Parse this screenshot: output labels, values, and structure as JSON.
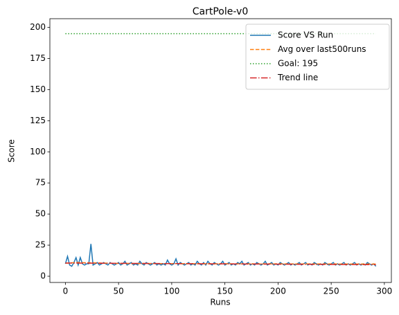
{
  "chart_data": {
    "type": "line",
    "title": "CartPole-v0",
    "x_label": "Runs",
    "y_label": "Score",
    "xlim": [
      -14.6,
      306.6
    ],
    "ylim": [
      -5,
      207
    ],
    "xticks": [
      0,
      50,
      100,
      150,
      200,
      250,
      300
    ],
    "yticks": [
      0,
      25,
      50,
      75,
      100,
      125,
      150,
      175,
      200
    ],
    "legend": "upper right",
    "series": [
      {
        "name": "Score VS Run",
        "color": "#1f77b4",
        "style": "solid",
        "x": [
          0,
          2,
          4,
          6,
          8,
          10,
          12,
          14,
          16,
          18,
          20,
          22,
          24,
          26,
          28,
          30,
          32,
          34,
          36,
          38,
          40,
          42,
          44,
          46,
          48,
          50,
          52,
          54,
          56,
          58,
          60,
          62,
          64,
          66,
          68,
          70,
          72,
          74,
          76,
          78,
          80,
          82,
          84,
          86,
          88,
          90,
          92,
          94,
          96,
          98,
          100,
          102,
          104,
          106,
          108,
          110,
          112,
          114,
          116,
          118,
          120,
          122,
          124,
          126,
          128,
          130,
          132,
          134,
          136,
          138,
          140,
          142,
          144,
          146,
          148,
          150,
          152,
          154,
          156,
          158,
          160,
          162,
          164,
          166,
          168,
          170,
          172,
          174,
          176,
          178,
          180,
          182,
          184,
          186,
          188,
          190,
          192,
          194,
          196,
          198,
          200,
          202,
          204,
          206,
          208,
          210,
          212,
          214,
          216,
          218,
          220,
          222,
          224,
          226,
          228,
          230,
          232,
          234,
          236,
          238,
          240,
          242,
          244,
          246,
          248,
          250,
          252,
          254,
          256,
          258,
          260,
          262,
          264,
          266,
          268,
          270,
          272,
          274,
          276,
          278,
          280,
          282,
          284,
          286,
          288,
          290,
          292
        ],
        "values": [
          10,
          16,
          9,
          8,
          11,
          15,
          9,
          15,
          10,
          9,
          10,
          10,
          26,
          9,
          10,
          11,
          9,
          10,
          11,
          10,
          9,
          11,
          10,
          9,
          10,
          11,
          9,
          10,
          12,
          9,
          10,
          11,
          9,
          10,
          9,
          12,
          10,
          9,
          11,
          10,
          9,
          10,
          11,
          9,
          10,
          9,
          10,
          9,
          13,
          10,
          9,
          10,
          14,
          9,
          11,
          10,
          9,
          10,
          11,
          9,
          10,
          9,
          12,
          10,
          9,
          11,
          9,
          12,
          10,
          9,
          11,
          10,
          9,
          10,
          12,
          9,
          10,
          11,
          9,
          10,
          9,
          11,
          10,
          12,
          9,
          10,
          11,
          9,
          10,
          9,
          11,
          10,
          9,
          10,
          12,
          9,
          10,
          11,
          9,
          10,
          9,
          11,
          10,
          9,
          10,
          11,
          9,
          10,
          9,
          10,
          11,
          9,
          10,
          11,
          9,
          10,
          9,
          11,
          10,
          9,
          10,
          9,
          11,
          10,
          9,
          10,
          11,
          9,
          10,
          9,
          10,
          11,
          9,
          10,
          9,
          10,
          11,
          9,
          10,
          9,
          10,
          9,
          11,
          10,
          9,
          10,
          8
        ]
      },
      {
        "name": "Avg over last500runs",
        "color": "#ff7f0e",
        "style": "dashed",
        "x": [
          0,
          10,
          25,
          50,
          150,
          292
        ],
        "values": [
          10.5,
          11,
          10.8,
          10.3,
          10,
          9.8
        ]
      },
      {
        "name": "Goal: 195",
        "color": "#2ca02c",
        "style": "dotted",
        "x": [
          0,
          292
        ],
        "values": [
          195,
          195
        ]
      },
      {
        "name": "Trend line",
        "color": "#d62728",
        "style": "dashdot",
        "x": [
          0,
          292
        ],
        "values": [
          10.6,
          9.3
        ]
      }
    ]
  }
}
